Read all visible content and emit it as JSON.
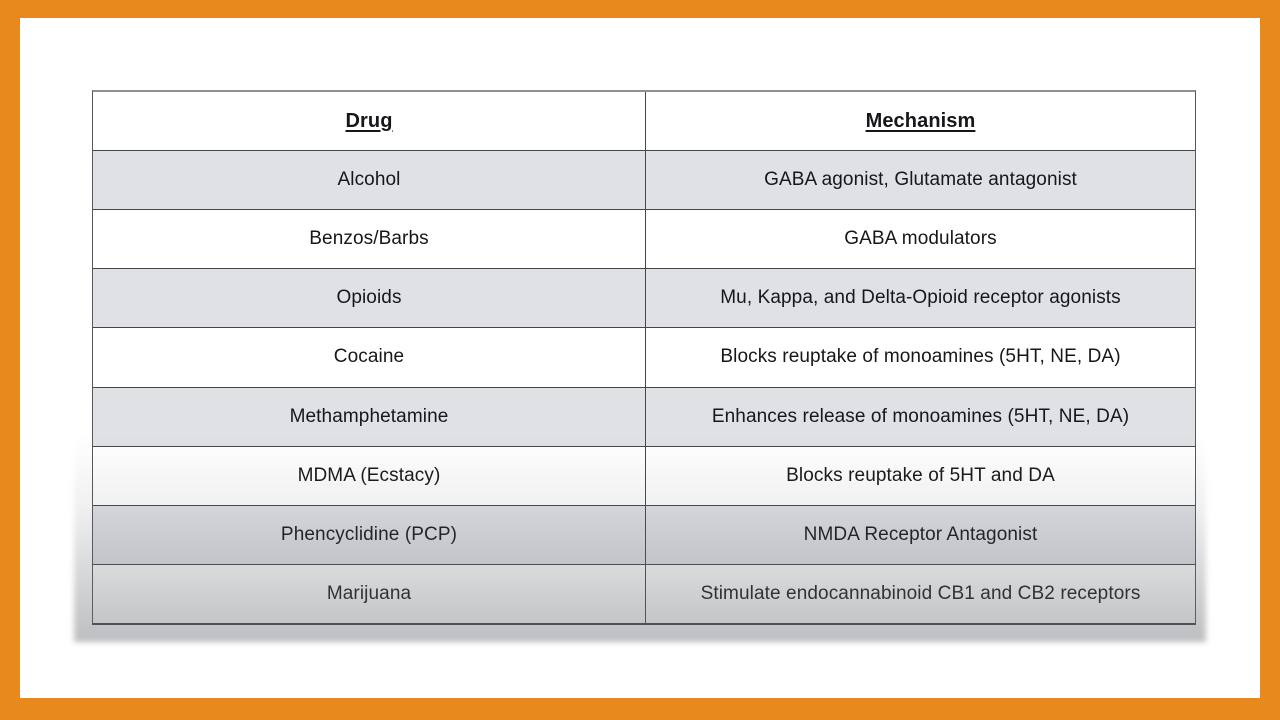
{
  "frame": {
    "border_color": "#E8891D",
    "panel_color": "#FFFFFF"
  },
  "table": {
    "headers": [
      {
        "label": "Drug"
      },
      {
        "label": "Mechanism"
      }
    ],
    "rows": [
      {
        "drug": "Alcohol",
        "mechanism": "GABA agonist, Glutamate antagonist"
      },
      {
        "drug": "Benzos/Barbs",
        "mechanism": "GABA modulators"
      },
      {
        "drug": "Opioids",
        "mechanism": "Mu, Kappa, and Delta-Opioid receptor agonists"
      },
      {
        "drug": "Cocaine",
        "mechanism": "Blocks reuptake of monoamines (5HT, NE, DA)"
      },
      {
        "drug": "Methamphetamine",
        "mechanism": "Enhances release of monoamines (5HT, NE, DA)"
      },
      {
        "drug": "MDMA (Ecstacy)",
        "mechanism": "Blocks reuptake of 5HT and DA"
      },
      {
        "drug": "Phencyclidine (PCP)",
        "mechanism": "NMDA Receptor Antagonist"
      },
      {
        "drug": "Marijuana",
        "mechanism": "Stimulate endocannabinoid CB1 and CB2 receptors"
      }
    ],
    "colors": {
      "alt_row_background": "#DFE1E5",
      "row_background": "#FFFFFF",
      "grid_line": "#44464A",
      "text": "#16171A",
      "bottom_shade": "#686B72"
    }
  }
}
